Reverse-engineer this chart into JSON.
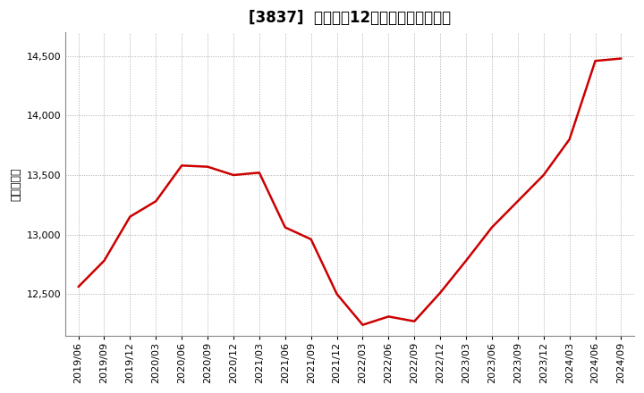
{
  "title": "[3837]  売上高の12か月移動合計の推移",
  "ylabel": "（百万円）",
  "line_color": "#cc0000",
  "background_color": "#ffffff",
  "plot_bg_color": "#ffffff",
  "grid_color": "#aaaaaa",
  "ylim": [
    12150,
    14700
  ],
  "yticks": [
    12500,
    13000,
    13500,
    14000,
    14500
  ],
  "dates": [
    "2019/06",
    "2019/09",
    "2019/12",
    "2020/03",
    "2020/06",
    "2020/09",
    "2020/12",
    "2021/03",
    "2021/06",
    "2021/09",
    "2021/12",
    "2022/03",
    "2022/06",
    "2022/09",
    "2022/12",
    "2023/03",
    "2023/06",
    "2023/09",
    "2023/12",
    "2024/03",
    "2024/06",
    "2024/09"
  ],
  "values": [
    12560,
    12780,
    13150,
    13280,
    13580,
    13570,
    13500,
    13520,
    13060,
    12960,
    12500,
    12240,
    12310,
    12270,
    12510,
    12780,
    13060,
    13280,
    13500,
    13800,
    14460,
    14480
  ],
  "title_fontsize": 12,
  "ylabel_fontsize": 9,
  "tick_fontsize": 8
}
